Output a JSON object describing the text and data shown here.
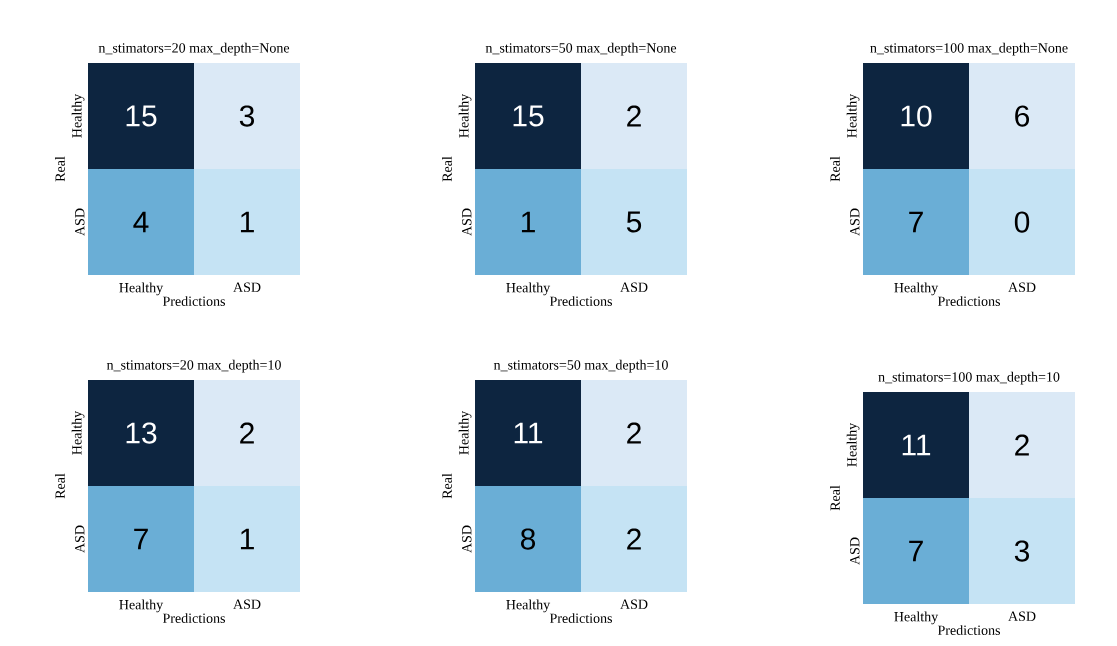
{
  "chart_data": [
    {
      "type": "heatmap",
      "title": "n_stimators=20 max_depth=None",
      "xlabel": "Predictions",
      "ylabel": "Real",
      "categories": [
        "Healthy",
        "ASD"
      ],
      "y_categories": [
        "Healthy",
        "ASD"
      ],
      "cells": [
        [
          15,
          3
        ],
        [
          4,
          1
        ]
      ],
      "data_labels": true,
      "colors": [
        [
          "#0d2540",
          "#dbe9f6"
        ],
        [
          "#6aaed6",
          "#c5e3f4"
        ]
      ]
    },
    {
      "type": "heatmap",
      "title": "n_stimators=50 max_depth=None",
      "xlabel": "Predictions",
      "ylabel": "Real",
      "categories": [
        "Healthy",
        "ASD"
      ],
      "y_categories": [
        "Healthy",
        "ASD"
      ],
      "cells": [
        [
          15,
          2
        ],
        [
          1,
          5
        ]
      ],
      "data_labels": true,
      "colors": [
        [
          "#0d2540",
          "#dbe9f6"
        ],
        [
          "#6aaed6",
          "#c5e3f4"
        ]
      ]
    },
    {
      "type": "heatmap",
      "title": "n_stimators=100 max_depth=None",
      "xlabel": "Predictions",
      "ylabel": "Real",
      "categories": [
        "Healthy",
        "ASD"
      ],
      "y_categories": [
        "Healthy",
        "ASD"
      ],
      "cells": [
        [
          10,
          6
        ],
        [
          7,
          0
        ]
      ],
      "data_labels": true,
      "colors": [
        [
          "#0d2540",
          "#dbe9f6"
        ],
        [
          "#6aaed6",
          "#c5e3f4"
        ]
      ]
    },
    {
      "type": "heatmap",
      "title": "n_stimators=20 max_depth=10",
      "xlabel": "Predictions",
      "ylabel": "Real",
      "categories": [
        "Healthy",
        "ASD"
      ],
      "y_categories": [
        "Healthy",
        "ASD"
      ],
      "cells": [
        [
          13,
          2
        ],
        [
          7,
          1
        ]
      ],
      "data_labels": true,
      "colors": [
        [
          "#0d2540",
          "#dbe9f6"
        ],
        [
          "#6aaed6",
          "#c5e3f4"
        ]
      ]
    },
    {
      "type": "heatmap",
      "title": "n_stimators=50 max_depth=10",
      "xlabel": "Predictions",
      "ylabel": "Real",
      "categories": [
        "Healthy",
        "ASD"
      ],
      "y_categories": [
        "Healthy",
        "ASD"
      ],
      "cells": [
        [
          11,
          2
        ],
        [
          8,
          2
        ]
      ],
      "data_labels": true,
      "colors": [
        [
          "#0d2540",
          "#dbe9f6"
        ],
        [
          "#6aaed6",
          "#c5e3f4"
        ]
      ]
    },
    {
      "type": "heatmap",
      "title": "n_stimators=100 max_depth=10",
      "xlabel": "Predictions",
      "ylabel": "Real",
      "categories": [
        "Healthy",
        "ASD"
      ],
      "y_categories": [
        "Healthy",
        "ASD"
      ],
      "cells": [
        [
          11,
          2
        ],
        [
          7,
          3
        ]
      ],
      "data_labels": true,
      "colors": [
        [
          "#0d2540",
          "#dbe9f6"
        ],
        [
          "#6aaed6",
          "#c5e3f4"
        ]
      ]
    }
  ]
}
